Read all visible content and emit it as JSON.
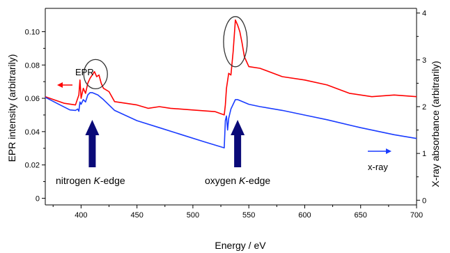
{
  "chart_data": {
    "type": "line",
    "xlabel": "Energy / eV",
    "ylabel_left": "EPR intensity (arbitrarily)",
    "ylabel_right": "X-ray absorbance (arbitrarily)",
    "xlim": [
      368,
      700
    ],
    "ylim_left": [
      -0.004,
      0.114
    ],
    "ylim_right": [
      -0.1,
      4.1
    ],
    "x_ticks": [
      400,
      450,
      500,
      550,
      600,
      650,
      700
    ],
    "y_ticks_left": [
      0,
      0.02,
      0.04,
      0.06,
      0.08,
      0.1
    ],
    "y_tick_labels_left": [
      "0",
      "0.02",
      "0.04",
      "0.06",
      "0.08",
      "0.10"
    ],
    "y_ticks_right": [
      0,
      1,
      2,
      3,
      4
    ],
    "grid": false,
    "colors": {
      "epr": "#ff0000",
      "xray": "#1a3cff",
      "arrow": "#0a0a78",
      "circle": "#333333"
    },
    "series": [
      {
        "name": "EPR",
        "axis": "left",
        "x": [
          368,
          385,
          395,
          398,
          399,
          400,
          402,
          404,
          406,
          408,
          410,
          412,
          414,
          416,
          418,
          420,
          425,
          430,
          440,
          450,
          460,
          470,
          480,
          500,
          520,
          528,
          529,
          530,
          532,
          534,
          536,
          538,
          540,
          542,
          544,
          546,
          548,
          550,
          560,
          580,
          600,
          620,
          640,
          660,
          680,
          700
        ],
        "y": [
          0.061,
          0.057,
          0.056,
          0.062,
          0.071,
          0.06,
          0.066,
          0.063,
          0.069,
          0.072,
          0.074,
          0.076,
          0.073,
          0.074,
          0.069,
          0.066,
          0.064,
          0.058,
          0.057,
          0.056,
          0.054,
          0.055,
          0.054,
          0.053,
          0.052,
          0.05,
          0.056,
          0.066,
          0.075,
          0.074,
          0.088,
          0.107,
          0.104,
          0.1,
          0.093,
          0.085,
          0.082,
          0.079,
          0.078,
          0.073,
          0.071,
          0.068,
          0.063,
          0.061,
          0.062,
          0.061
        ]
      },
      {
        "name": "x-ray",
        "axis": "right",
        "x": [
          368,
          380,
          390,
          395,
          397,
          398,
          399,
          400,
          402,
          404,
          406,
          408,
          410,
          415,
          420,
          430,
          450,
          470,
          490,
          510,
          528,
          529,
          530,
          531,
          532,
          533,
          534,
          536,
          538,
          540,
          545,
          550,
          560,
          580,
          600,
          620,
          650,
          680,
          700
        ],
        "y": [
          2.2,
          2.05,
          1.93,
          1.92,
          1.95,
          1.9,
          2.1,
          2.05,
          2.15,
          2.1,
          2.25,
          2.3,
          2.3,
          2.25,
          2.15,
          1.92,
          1.7,
          1.55,
          1.4,
          1.25,
          1.12,
          1.7,
          1.8,
          1.5,
          1.75,
          1.85,
          1.95,
          2.05,
          2.15,
          2.15,
          2.1,
          2.05,
          2.0,
          1.92,
          1.82,
          1.72,
          1.55,
          1.4,
          1.32
        ]
      }
    ],
    "annotations": {
      "epr_label": "EPR",
      "xray_label": "x-ray",
      "nitrogen_edge": {
        "prefix": "nitrogen ",
        "italic": "K",
        "suffix": "-edge",
        "x": 410
      },
      "oxygen_edge": {
        "prefix": "oxygen ",
        "italic": "K",
        "suffix": "-edge",
        "x": 540
      }
    }
  }
}
